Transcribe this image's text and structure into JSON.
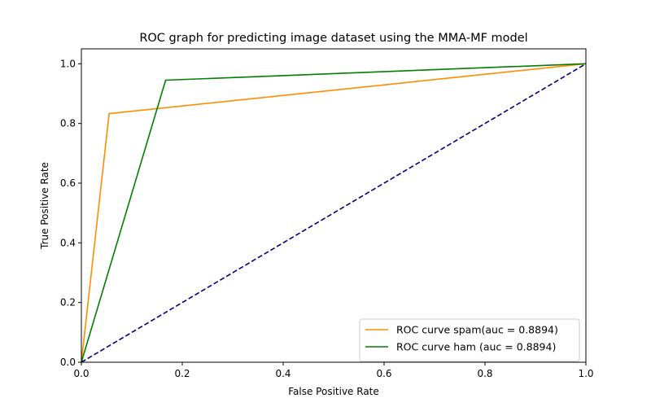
{
  "chart_data": {
    "type": "line",
    "title": "ROC graph for predicting image dataset using the MMA-MF model",
    "xlabel": "False Positive Rate",
    "ylabel": "True Positive Rate",
    "xlim": [
      0.0,
      1.0
    ],
    "ylim": [
      0.0,
      1.05
    ],
    "xticks": [
      "0.0",
      "0.2",
      "0.4",
      "0.6",
      "0.8",
      "1.0"
    ],
    "yticks": [
      "0.0",
      "0.2",
      "0.4",
      "0.6",
      "0.8",
      "1.0"
    ],
    "grid": false,
    "legend_position": "bottom-right",
    "series": [
      {
        "name": "ROC curve spam(auc = 0.8894)",
        "color": "#ff8c00",
        "style": "solid",
        "x": [
          0.0,
          0.055,
          1.0
        ],
        "y": [
          0.0,
          0.833,
          1.0
        ]
      },
      {
        "name": "ROC curve ham (auc = 0.8894)",
        "color": "#008000",
        "style": "solid",
        "x": [
          0.0,
          0.167,
          1.0
        ],
        "y": [
          0.0,
          0.945,
          1.0
        ]
      },
      {
        "color": "#000080",
        "style": "dashed",
        "x": [
          0.0,
          1.0
        ],
        "y": [
          0.0,
          1.0
        ]
      }
    ]
  }
}
